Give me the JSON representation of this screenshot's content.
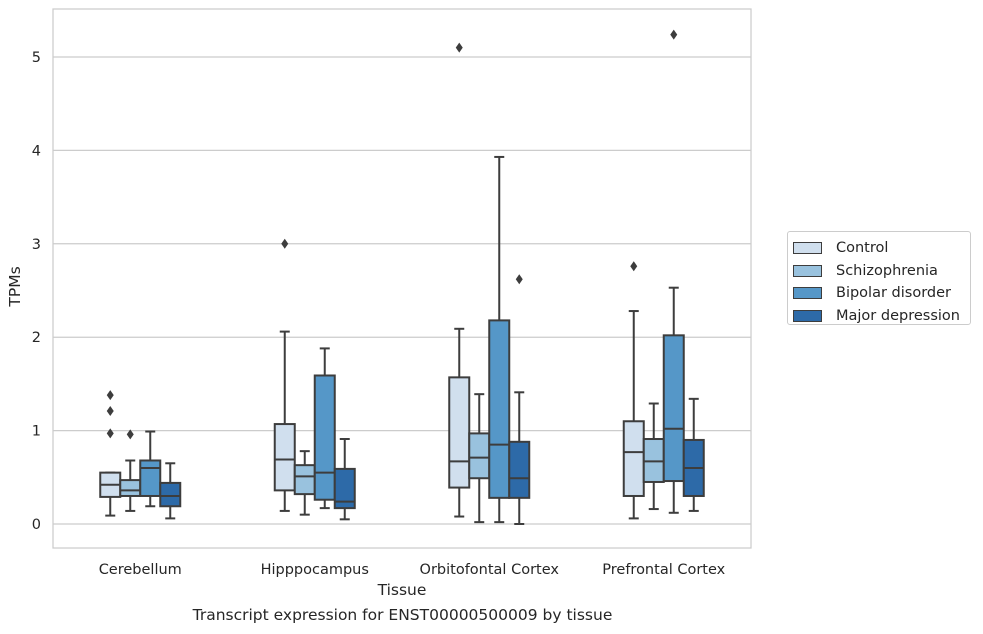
{
  "chart_data": {
    "type": "box",
    "ylabel": "TPMs",
    "xlabel": "Tissue",
    "caption": "Transcript expression for ENST00000500009 by tissue",
    "ylim": [
      -0.25,
      5.5
    ],
    "yticks": [
      0,
      1,
      2,
      3,
      4,
      5
    ],
    "grid": true,
    "legend_position": "right",
    "categories": [
      "Cerebellum",
      "Hipppocampus",
      "Orbitofontal Cortex",
      "Prefrontal Cortex"
    ],
    "series": [
      {
        "name": "Control",
        "color": "#d0dfee",
        "boxes": [
          {
            "whislo": 0.09,
            "q1": 0.29,
            "med": 0.42,
            "q3": 0.55,
            "whishi": 0.55,
            "fliers": [
              0.97,
              1.21,
              1.38
            ]
          },
          {
            "whislo": 0.14,
            "q1": 0.36,
            "med": 0.69,
            "q3": 1.07,
            "whishi": 2.06,
            "fliers": [
              3.0
            ]
          },
          {
            "whislo": 0.08,
            "q1": 0.39,
            "med": 0.67,
            "q3": 1.57,
            "whishi": 2.09,
            "fliers": [
              5.1
            ]
          },
          {
            "whislo": 0.06,
            "q1": 0.3,
            "med": 0.77,
            "q3": 1.1,
            "whishi": 2.28,
            "fliers": [
              2.76
            ]
          }
        ]
      },
      {
        "name": "Schizophrenia",
        "color": "#99c2de",
        "boxes": [
          {
            "whislo": 0.14,
            "q1": 0.3,
            "med": 0.36,
            "q3": 0.47,
            "whishi": 0.68,
            "fliers": [
              0.96
            ]
          },
          {
            "whislo": 0.1,
            "q1": 0.32,
            "med": 0.51,
            "q3": 0.63,
            "whishi": 0.78,
            "fliers": []
          },
          {
            "whislo": 0.02,
            "q1": 0.49,
            "med": 0.71,
            "q3": 0.97,
            "whishi": 1.39,
            "fliers": []
          },
          {
            "whislo": 0.16,
            "q1": 0.45,
            "med": 0.67,
            "q3": 0.91,
            "whishi": 1.29,
            "fliers": []
          }
        ]
      },
      {
        "name": "Bipolar disorder",
        "color": "#5597c8",
        "boxes": [
          {
            "whislo": 0.19,
            "q1": 0.3,
            "med": 0.6,
            "q3": 0.68,
            "whishi": 0.99,
            "fliers": []
          },
          {
            "whislo": 0.17,
            "q1": 0.26,
            "med": 0.55,
            "q3": 1.59,
            "whishi": 1.88,
            "fliers": []
          },
          {
            "whislo": 0.02,
            "q1": 0.28,
            "med": 0.85,
            "q3": 2.18,
            "whishi": 3.93,
            "fliers": []
          },
          {
            "whislo": 0.12,
            "q1": 0.46,
            "med": 1.02,
            "q3": 2.02,
            "whishi": 2.53,
            "fliers": [
              5.24
            ]
          }
        ]
      },
      {
        "name": "Major depression",
        "color": "#2d6aa8",
        "boxes": [
          {
            "whislo": 0.06,
            "q1": 0.19,
            "med": 0.3,
            "q3": 0.44,
            "whishi": 0.65,
            "fliers": []
          },
          {
            "whislo": 0.05,
            "q1": 0.17,
            "med": 0.24,
            "q3": 0.59,
            "whishi": 0.91,
            "fliers": []
          },
          {
            "whislo": 0.0,
            "q1": 0.28,
            "med": 0.49,
            "q3": 0.88,
            "whishi": 1.41,
            "fliers": [
              2.62
            ]
          },
          {
            "whislo": 0.14,
            "q1": 0.3,
            "med": 0.6,
            "q3": 0.9,
            "whishi": 1.34,
            "fliers": []
          }
        ]
      }
    ]
  }
}
